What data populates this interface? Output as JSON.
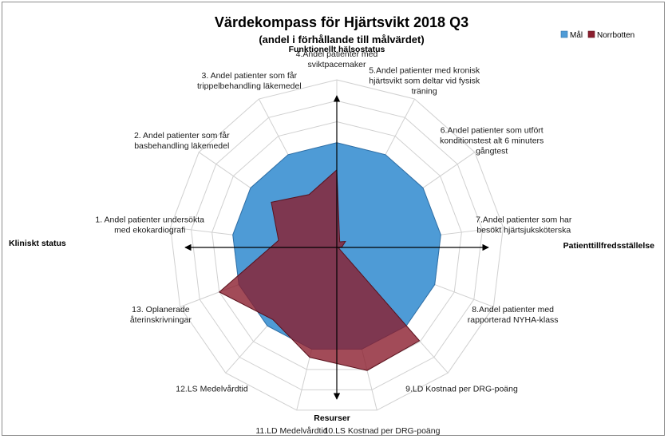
{
  "chart_data": {
    "type": "radar",
    "title": "Värdekompass för  Hjärtsvikt 2018 Q3",
    "subtitle": "(andel i förhållande till målvärdet)",
    "categories": [
      [
        "4.Andel patienter med",
        "sviktpacemaker"
      ],
      [
        "5.Andel patienter med kronisk",
        "hjärtsvikt som deltar vid fysisk",
        "träning"
      ],
      [
        "6.Andel patienter som utfört",
        "konditionstest alt 6 minuters",
        "gångtest"
      ],
      [
        "7.Andel patienter  som har",
        "besökt hjärtsjuksköterska"
      ],
      [
        "8.Andel patienter med",
        "rapporterad NYHA-klass"
      ],
      [
        "9.LD Kostnad per DRG-poäng"
      ],
      [
        "10.LS Kostnad per DRG-poäng"
      ],
      [
        "11.LD Medelvårdtid"
      ],
      [
        "12.LS Medelvårdtid"
      ],
      [
        "13. Oplanerade",
        "återinskrivningar"
      ],
      [
        "1. Andel patienter  undersökta",
        "med ekokardiografi"
      ],
      [
        "2.  Andel patienter som får",
        "basbehandling läkemedel"
      ],
      [
        "3. Andel patienter som får",
        "trippelbehandling läkemedel"
      ]
    ],
    "rlim": [
      0,
      1.6
    ],
    "gridlines": 8,
    "series": [
      {
        "name": "Mål",
        "color": "#4e9bd6",
        "values": [
          1,
          1,
          1,
          1,
          1,
          1,
          1,
          1,
          1,
          1,
          1,
          1,
          1
        ]
      },
      {
        "name": "Norrbotten",
        "color": "#8b1e2e",
        "values": [
          0.74,
          0.06,
          0.1,
          0.05,
          0.02,
          1.19,
          1.21,
          1.08,
          0.92,
          1.2,
          0.56,
          0.76,
          0.57
        ]
      }
    ],
    "axis_titles": {
      "top": "Funktionellt hälsostatus",
      "right": "Patienttillfredsställelse",
      "bottom": "Resurser",
      "left": "Kliniskt status"
    },
    "legend_position": "top-right"
  }
}
